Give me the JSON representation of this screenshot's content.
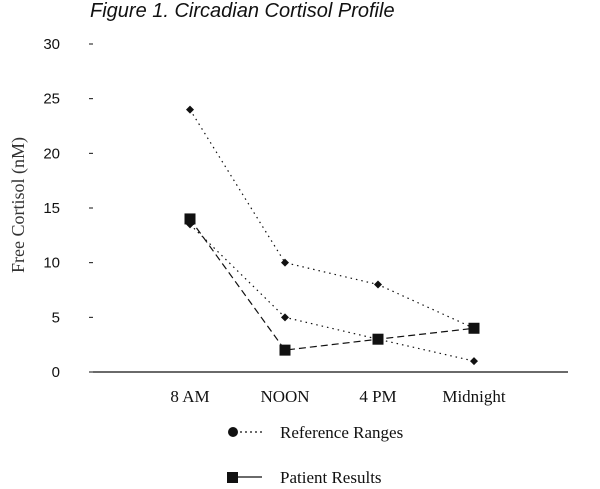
{
  "chart_data": {
    "type": "line",
    "title": "Figure 1.  Circadian Cortisol Profile",
    "ylabel": "Free Cortisol (nM)",
    "xlabel": "",
    "categories": [
      "8 AM",
      "NOON",
      "4 PM",
      "Midnight"
    ],
    "ylim": [
      0,
      30
    ],
    "yticks": [
      0,
      5,
      10,
      15,
      20,
      25,
      30
    ],
    "reference_upper": [
      24,
      10,
      8,
      4
    ],
    "reference_lower": [
      13.5,
      5,
      3,
      1
    ],
    "series": [
      {
        "name": "Reference Ranges",
        "values": [
          24,
          10,
          8,
          4
        ],
        "marker": "diamond",
        "line": "dotted"
      },
      {
        "name": "Patient Results",
        "values": [
          14,
          2,
          3,
          4
        ],
        "marker": "square",
        "line": "dashed"
      }
    ],
    "legend_position": "bottom",
    "colors": {
      "line": "#111111",
      "text": "#111111"
    }
  }
}
